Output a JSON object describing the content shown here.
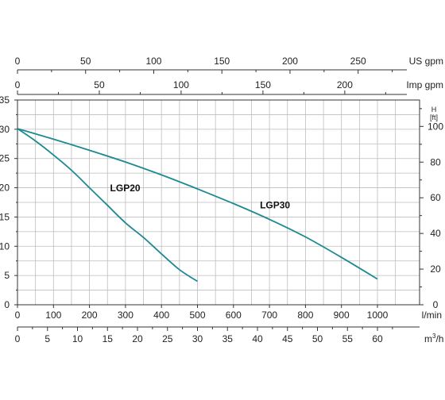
{
  "chart_data": {
    "type": "line",
    "series": [
      {
        "name": "LGP20",
        "x": [
          0,
          50,
          100,
          150,
          200,
          250,
          300,
          350,
          400,
          450,
          500
        ],
        "y": [
          30.1,
          28.0,
          25.6,
          23.0,
          20.0,
          17.0,
          14.0,
          11.5,
          8.7,
          6.0,
          4.0
        ]
      },
      {
        "name": "LGP30",
        "x": [
          0,
          100,
          200,
          300,
          400,
          500,
          600,
          700,
          800,
          900,
          1000
        ],
        "y": [
          30.1,
          28.3,
          26.4,
          24.4,
          22.2,
          19.8,
          17.3,
          14.6,
          11.6,
          8.1,
          4.4
        ]
      }
    ],
    "axes": {
      "y_left": {
        "ticks": [
          "0",
          "5",
          "10",
          "15",
          "20",
          "25",
          "30",
          "35"
        ],
        "range": [
          0,
          35
        ]
      },
      "y_right": {
        "unit_label_line1": "H",
        "unit_label_line2": "[ft]",
        "ticks": [
          "0",
          "20",
          "40",
          "60",
          "80",
          "100"
        ],
        "range_ft": [
          0,
          114.8
        ]
      },
      "x_lmin": {
        "unit_label": "l/min",
        "ticks": [
          "0",
          "100",
          "200",
          "300",
          "400",
          "500",
          "600",
          "700",
          "800",
          "900",
          "1000"
        ],
        "range": [
          0,
          1100
        ]
      },
      "x_m3h": {
        "unit_label": "m",
        "unit_sup": "3",
        "unit_suffix": "/h",
        "ticks": [
          "0",
          "5",
          "10",
          "15",
          "20",
          "25",
          "30",
          "35",
          "40",
          "45",
          "50",
          "55",
          "60"
        ]
      },
      "x_usgpm": {
        "unit_label": "US gpm",
        "ticks": [
          "0",
          "50",
          "100",
          "150",
          "200",
          "250"
        ]
      },
      "x_impgpm": {
        "unit_label": "Imp gpm",
        "ticks": [
          "0",
          "50",
          "100",
          "150",
          "200"
        ]
      }
    },
    "grid": true,
    "curve_color": "#1d8a93"
  }
}
